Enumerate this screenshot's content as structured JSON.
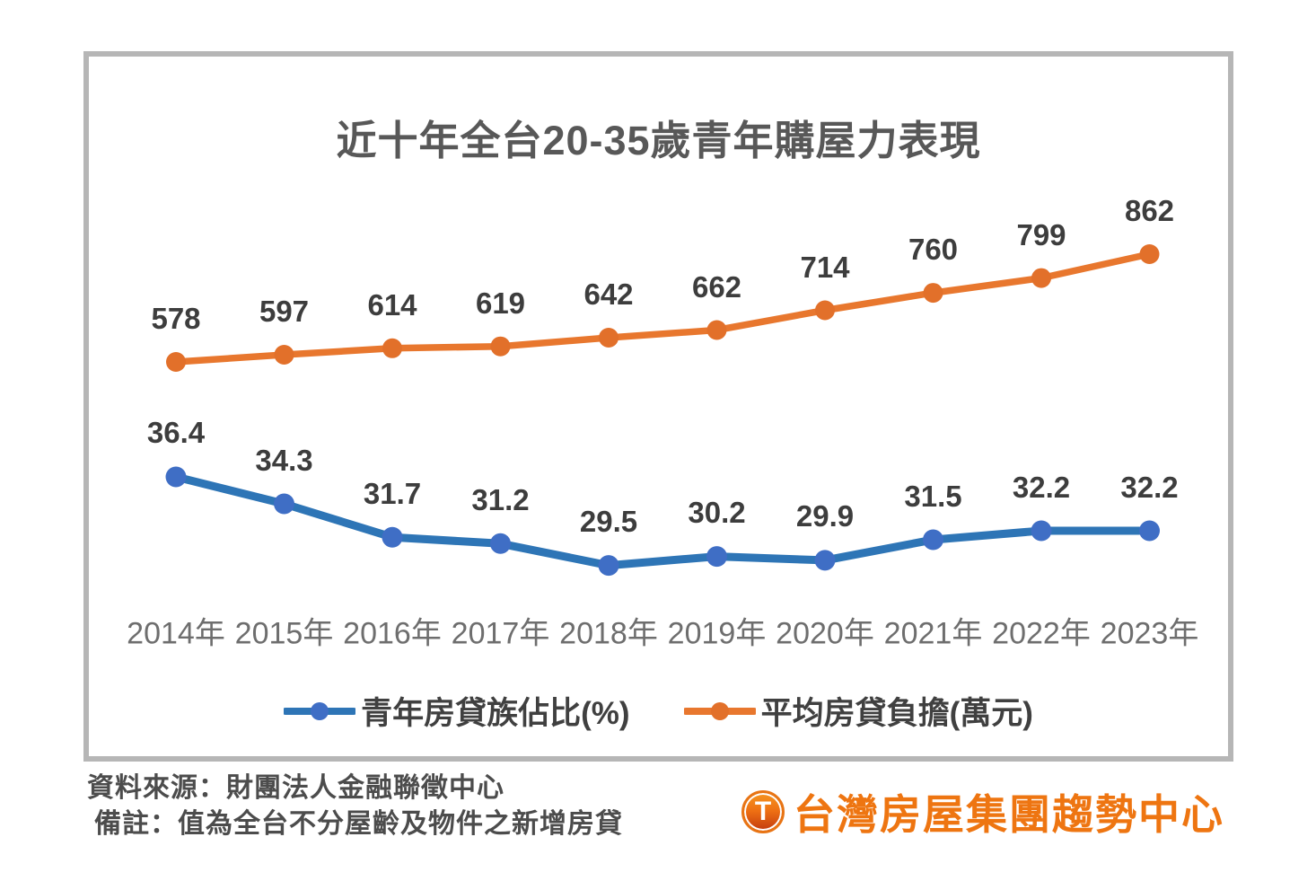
{
  "title": "近十年全台20-35歲青年購屋力表現",
  "chart_data": {
    "type": "line",
    "categories": [
      "2014年",
      "2015年",
      "2016年",
      "2017年",
      "2018年",
      "2019年",
      "2020年",
      "2021年",
      "2022年",
      "2023年"
    ],
    "series": [
      {
        "name": "青年房貸族佔比(%)",
        "values": [
          36.4,
          34.3,
          31.7,
          31.2,
          29.5,
          30.2,
          29.9,
          31.5,
          32.2,
          32.2
        ],
        "color": "#2E75B6",
        "marker_color": "#3F6EC5"
      },
      {
        "name": "平均房貸負擔(萬元)",
        "values": [
          578,
          597,
          614,
          619,
          642,
          662,
          714,
          760,
          799,
          862
        ],
        "color": "#E8772E",
        "marker_color": "#E2702A"
      }
    ],
    "title": "近十年全台20-35歲青年購屋力表現",
    "xlabel": "",
    "ylabel": "",
    "grid": false,
    "legend_position": "bottom",
    "data_labels": true
  },
  "footer": {
    "source": "資料來源：財團法人金融聯徵中心",
    "note": "備註：值為全台不分屋齡及物件之新增房貸"
  },
  "logo": {
    "icon_letter": "T",
    "text": "台灣房屋集團趨勢中心",
    "color": "#EE7511"
  }
}
